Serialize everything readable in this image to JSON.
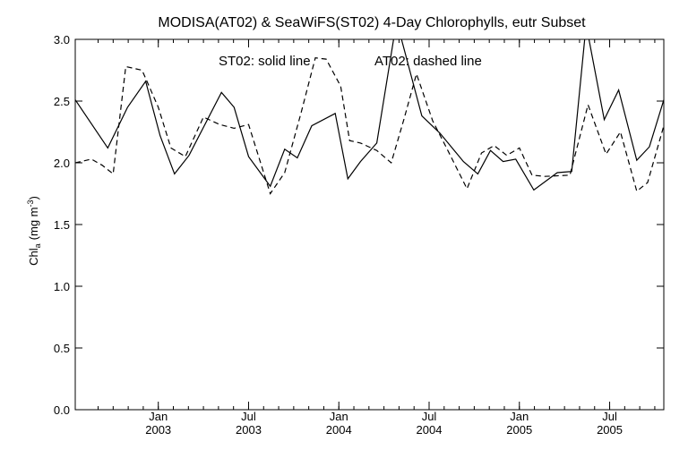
{
  "chart_data": {
    "type": "line",
    "title": "MODISA(AT02) & SeaWiFS(ST02) 4-Day Chlorophylls, eutr Subset",
    "annotation": {
      "solid": "ST02: solid line",
      "dashed": "AT02: dashed line"
    },
    "ylabel": "Chl",
    "ylabel_sub": "a",
    "ylabel_units": "(mg m",
    "ylabel_sup": "-3",
    "ylabel_close": ")",
    "xlim": [
      2002.54,
      2005.8
    ],
    "ylim": [
      0,
      3.0
    ],
    "yticks": [
      {
        "value": 0.0,
        "label": "0.0"
      },
      {
        "value": 0.5,
        "label": "0.5"
      },
      {
        "value": 1.0,
        "label": "1.0"
      },
      {
        "value": 1.5,
        "label": "1.5"
      },
      {
        "value": 2.0,
        "label": "2.0"
      },
      {
        "value": 2.5,
        "label": "2.5"
      },
      {
        "value": 3.0,
        "label": "3.0"
      }
    ],
    "xticks": [
      {
        "value": 2003.0,
        "month": "Jan",
        "year": "2003"
      },
      {
        "value": 2003.5,
        "month": "Jul",
        "year": "2003"
      },
      {
        "value": 2004.0,
        "month": "Jan",
        "year": "2004"
      },
      {
        "value": 2004.5,
        "month": "Jul",
        "year": "2004"
      },
      {
        "value": 2005.0,
        "month": "Jan",
        "year": "2005"
      },
      {
        "value": 2005.5,
        "month": "Jul",
        "year": "2005"
      }
    ],
    "grid": false,
    "series": [
      {
        "name": "ST02",
        "style": "solid",
        "color": "#000000",
        "x": [
          2002.54,
          2002.72,
          2002.83,
          2002.93,
          2003.01,
          2003.09,
          2003.17,
          2003.35,
          2003.42,
          2003.5,
          2003.62,
          2003.7,
          2003.77,
          2003.85,
          2003.98,
          2004.05,
          2004.12,
          2004.21,
          2004.32,
          2004.46,
          2004.56,
          2004.69,
          2004.77,
          2004.84,
          2004.91,
          2004.98,
          2005.08,
          2005.21,
          2005.29,
          2005.37,
          2005.47,
          2005.55,
          2005.65,
          2005.72,
          2005.8
        ],
        "y": [
          2.51,
          2.12,
          2.45,
          2.66,
          2.22,
          1.91,
          2.06,
          2.57,
          2.45,
          2.05,
          1.81,
          2.11,
          2.04,
          2.3,
          2.4,
          1.87,
          2.01,
          2.16,
          3.15,
          2.38,
          2.24,
          2.01,
          1.91,
          2.1,
          2.01,
          2.03,
          1.78,
          1.92,
          1.93,
          3.12,
          2.35,
          2.59,
          2.02,
          2.13,
          2.51
        ]
      },
      {
        "name": "AT02",
        "style": "dashed",
        "color": "#000000",
        "x": [
          2002.54,
          2002.63,
          2002.69,
          2002.75,
          2002.82,
          2002.91,
          2003.0,
          2003.07,
          2003.15,
          2003.25,
          2003.34,
          2003.42,
          2003.5,
          2003.62,
          2003.7,
          2003.79,
          2003.87,
          2003.93,
          2004.01,
          2004.06,
          2004.12,
          2004.21,
          2004.29,
          2004.36,
          2004.43,
          2004.52,
          2004.6,
          2004.71,
          2004.79,
          2004.86,
          2004.93,
          2005.0,
          2005.07,
          2005.14,
          2005.28,
          2005.38,
          2005.48,
          2005.56,
          2005.65,
          2005.71,
          2005.8
        ],
        "y": [
          2.0,
          2.03,
          1.98,
          1.91,
          2.78,
          2.75,
          2.45,
          2.12,
          2.05,
          2.37,
          2.31,
          2.28,
          2.31,
          1.75,
          1.92,
          2.4,
          2.85,
          2.84,
          2.62,
          2.18,
          2.16,
          2.1,
          2.0,
          2.35,
          2.72,
          2.34,
          2.11,
          1.79,
          2.08,
          2.14,
          2.06,
          2.12,
          1.9,
          1.89,
          1.9,
          2.47,
          2.07,
          2.25,
          1.77,
          1.84,
          2.3
        ]
      }
    ]
  }
}
